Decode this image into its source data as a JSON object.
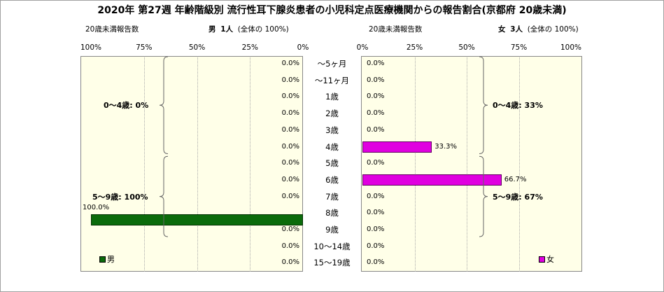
{
  "title": "2020年 第27週 年齢階級別 流行性耳下腺炎患者の小児科定点医療機関からの報告割合(京都府 20歳未満)",
  "left_header": {
    "caption": "20歳未満報告数",
    "sex": "男",
    "count": "1人",
    "share": "(全体の  100%)"
  },
  "right_header": {
    "caption": "20歳未満報告数",
    "sex": "女",
    "count": "3人",
    "share": "(全体の  100%)"
  },
  "colors": {
    "male": "#0b6b0b",
    "female": "#e000e0",
    "panel": "#ffffe8"
  },
  "chart_data": [
    {
      "type": "bar",
      "orientation": "horizontal",
      "direction": "right-to-left",
      "categories": [
        "～5ヶ月",
        "～11ヶ月",
        "1歳",
        "2歳",
        "3歳",
        "4歳",
        "5歳",
        "6歳",
        "7歳",
        "8歳",
        "9歳",
        "10～14歳",
        "15～19歳"
      ],
      "series": [
        {
          "name": "男",
          "values": [
            0,
            0,
            0,
            0,
            0,
            0,
            0,
            0,
            0,
            100,
            0,
            0,
            0
          ]
        }
      ],
      "data_labels": [
        "0.0%",
        "0.0%",
        "0.0%",
        "0.0%",
        "0.0%",
        "0.0%",
        "0.0%",
        "0.0%",
        "0.0%",
        "100.0%",
        "0.0%",
        "0.0%",
        "0.0%"
      ],
      "x_ticks": [
        "100%",
        "75%",
        "50%",
        "25%",
        "0%"
      ],
      "xlim": [
        0,
        100
      ],
      "groups": [
        {
          "label": "0～4歳: 0%",
          "from": 0,
          "to": 5
        },
        {
          "label": "5～9歳: 100%",
          "from": 6,
          "to": 10
        }
      ],
      "legend": "男"
    },
    {
      "type": "bar",
      "orientation": "horizontal",
      "direction": "left-to-right",
      "categories": [
        "～5ヶ月",
        "～11ヶ月",
        "1歳",
        "2歳",
        "3歳",
        "4歳",
        "5歳",
        "6歳",
        "7歳",
        "8歳",
        "9歳",
        "10～14歳",
        "15～19歳"
      ],
      "series": [
        {
          "name": "女",
          "values": [
            0,
            0,
            0,
            0,
            0,
            33.3,
            0,
            66.7,
            0,
            0,
            0,
            0,
            0
          ]
        }
      ],
      "data_labels": [
        "0.0%",
        "0.0%",
        "0.0%",
        "0.0%",
        "0.0%",
        "33.3%",
        "0.0%",
        "66.7%",
        "0.0%",
        "0.0%",
        "0.0%",
        "0.0%",
        "0.0%"
      ],
      "x_ticks": [
        "0%",
        "25%",
        "50%",
        "75%",
        "100%"
      ],
      "xlim": [
        0,
        100
      ],
      "groups": [
        {
          "label": "0～4歳: 33%",
          "from": 0,
          "to": 5
        },
        {
          "label": "5～9歳: 67%",
          "from": 6,
          "to": 10
        }
      ],
      "legend": "女"
    }
  ]
}
